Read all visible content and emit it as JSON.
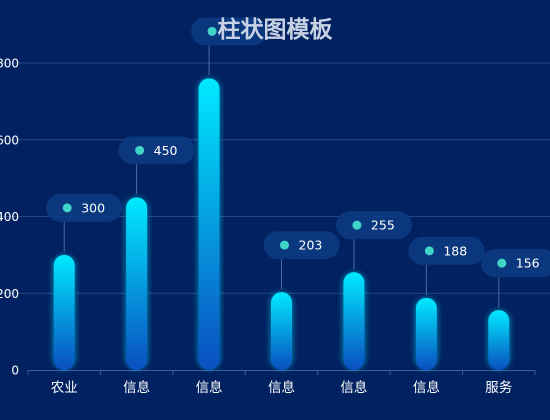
{
  "colors": {
    "background": "#012160",
    "grid": "#25477f",
    "axis": "#3b5f99",
    "text": "#ffffff",
    "title": "#c8d2e4",
    "bar_top": "#00eaff",
    "bar_bottom": "#0a4fc0",
    "badge": "#0c3a82",
    "dot": "#3fd6c8",
    "connector": "#4a6e9e"
  },
  "chart_data": {
    "type": "bar",
    "title": "柱状图模板",
    "xlabel": "",
    "ylabel": "",
    "categories": [
      "农业",
      "信息",
      "信息",
      "信息",
      "信息",
      "信息",
      "服务"
    ],
    "values": [
      300,
      450,
      760,
      203,
      255,
      188,
      156
    ],
    "data_labels": [
      "300",
      "450",
      "",
      "203",
      "255",
      "188",
      "156"
    ],
    "yticks": [
      "0",
      "200",
      "400",
      "600",
      "800"
    ],
    "ylim": [
      0,
      800
    ],
    "grid": true,
    "legend": "none"
  }
}
